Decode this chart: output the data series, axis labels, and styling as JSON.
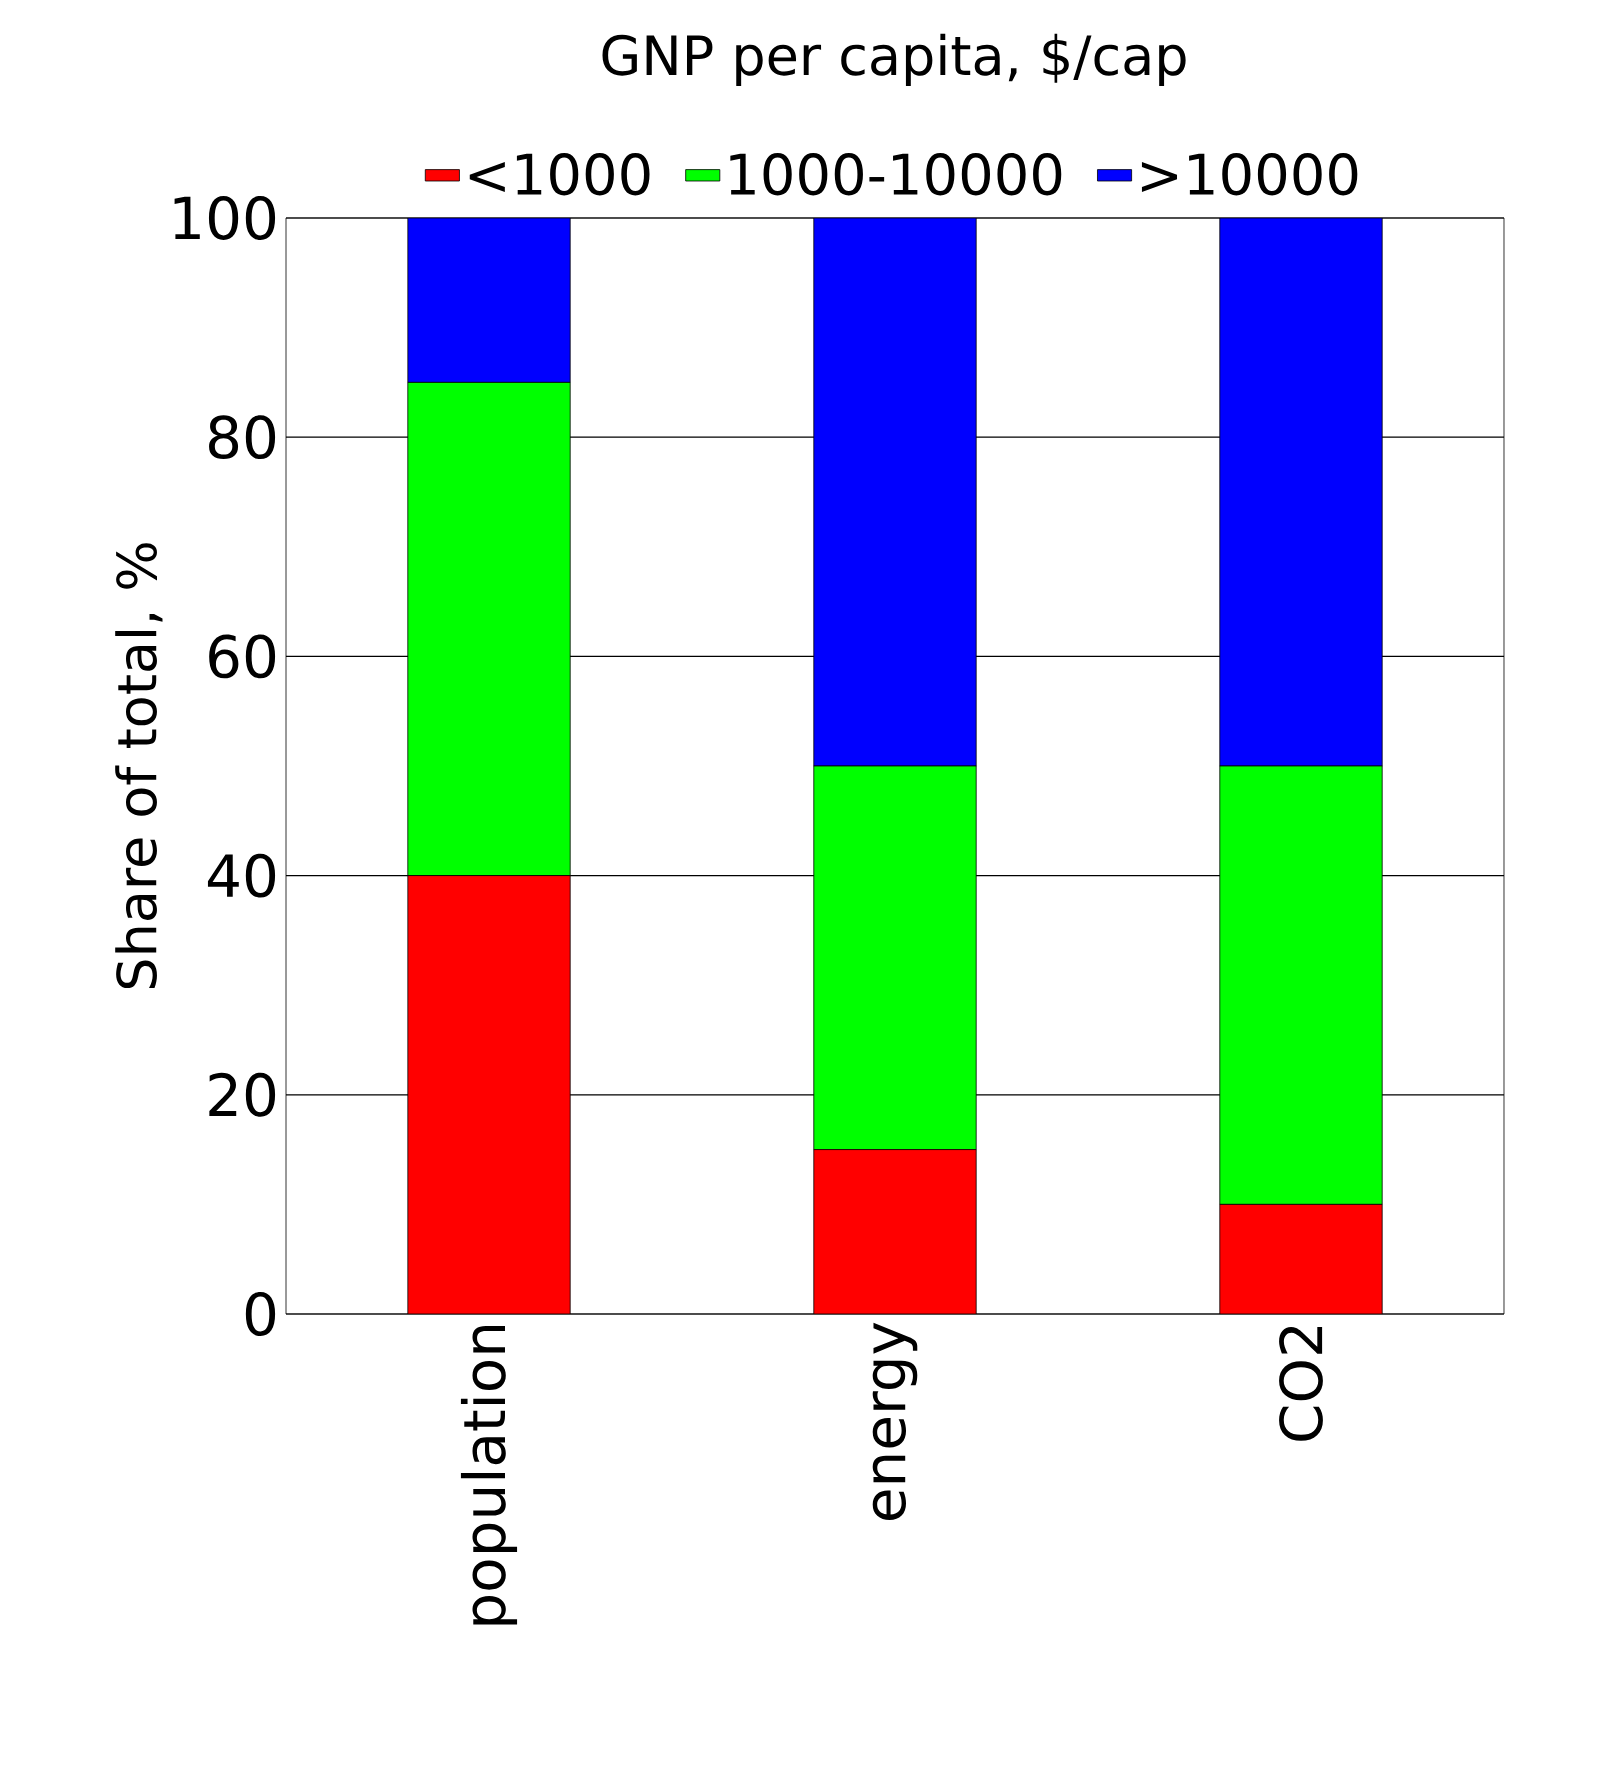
{
  "chart_data": {
    "type": "bar",
    "stacked": true,
    "legend_title": "GNP per capita, $/cap",
    "ylabel": "Share of total, %",
    "categories": [
      "population",
      "energy",
      "CO2"
    ],
    "series": [
      {
        "name": "<1000",
        "color": "#ff0000",
        "values": [
          40,
          15,
          10
        ]
      },
      {
        "name": "1000-10000",
        "color": "#00ff00",
        "values": [
          45,
          35,
          40
        ]
      },
      {
        "name": ">10000",
        "color": "#0000ff",
        "values": [
          15,
          50,
          50
        ]
      }
    ],
    "ylim": [
      0,
      100
    ],
    "yticks": [
      0,
      20,
      40,
      60,
      80,
      100
    ],
    "grid": "y",
    "legend": "top"
  }
}
